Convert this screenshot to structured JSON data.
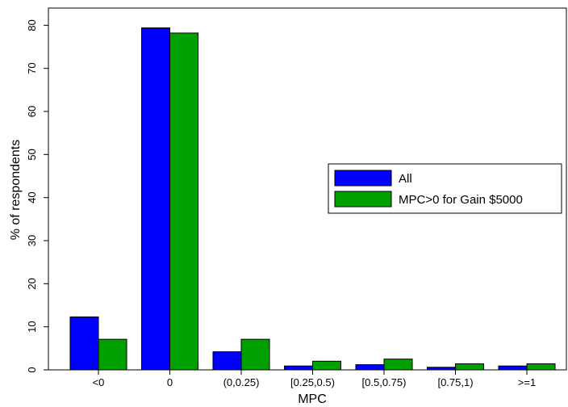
{
  "chart_data": {
    "type": "bar",
    "title": "",
    "xlabel": "MPC",
    "ylabel": "% of respondents",
    "categories": [
      "<0",
      "0",
      "(0,0.25)",
      "[0.25,0.5)",
      "[0.5,0.75)",
      "[0.75,1)",
      ">=1"
    ],
    "series": [
      {
        "name": "All",
        "color": "#0000ff",
        "values": [
          12.3,
          79.4,
          4.2,
          0.9,
          1.2,
          0.6,
          0.9
        ]
      },
      {
        "name": "MPC>0 for Gain $5000",
        "color": "#00a000",
        "values": [
          7.1,
          78.2,
          7.1,
          2.0,
          2.5,
          1.4,
          1.4
        ]
      }
    ],
    "ylim": [
      0,
      84
    ],
    "yticks": [
      0,
      10,
      20,
      30,
      40,
      50,
      60,
      70,
      80
    ],
    "grid": false,
    "legend_position": "right-center"
  }
}
